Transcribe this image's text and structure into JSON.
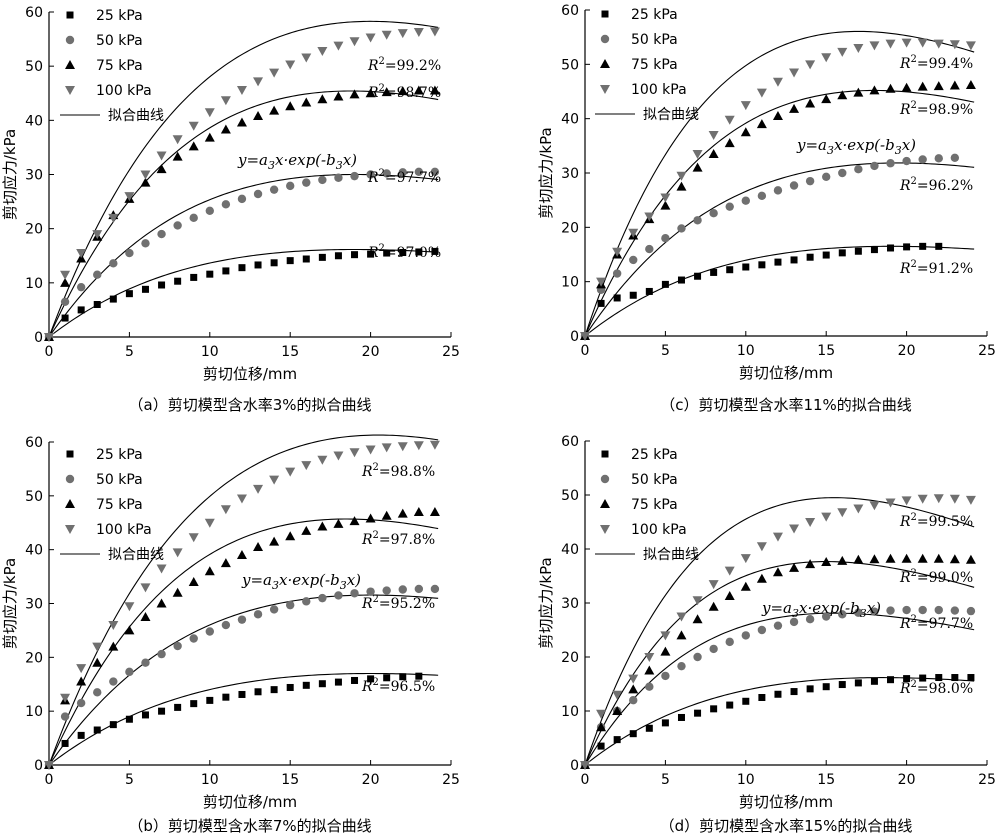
{
  "legend_labels": [
    "25 kPa",
    "50 kPa",
    "75 kPa",
    "100 kPa",
    "拟合曲线"
  ],
  "equation": {
    "lead": "y=a",
    "sub1": "3",
    "mid": "x·exp(-b",
    "sub2": "3",
    "tail": "x)"
  },
  "chart_data": [
    {
      "type": "scatter",
      "caption": "（a）剪切模型含水率3%的拟合曲线",
      "xlabel": "剪切位移/mm",
      "ylabel": "剪切应力/kPa",
      "xlim": [
        0,
        25
      ],
      "ylim": [
        0,
        60
      ],
      "xticks": [
        0,
        5,
        10,
        15,
        20,
        25
      ],
      "yticks": [
        0,
        10,
        20,
        30,
        40,
        50,
        60
      ],
      "x": [
        0,
        1,
        2,
        3,
        4,
        5,
        6,
        7,
        8,
        9,
        10,
        11,
        12,
        13,
        14,
        15,
        16,
        17,
        18,
        19,
        20,
        21,
        22,
        23,
        24
      ],
      "series": [
        {
          "name": "25 kPa",
          "marker": "square",
          "values": [
            0,
            3.5,
            5,
            6,
            7,
            8,
            8.8,
            9.6,
            10.3,
            11,
            11.6,
            12.2,
            12.8,
            13.3,
            13.7,
            14.1,
            14.4,
            14.7,
            15,
            15.2,
            15.3,
            15.5,
            15.6,
            15.7,
            15.8
          ],
          "fit": {
            "a": 2.31,
            "b": 0.0526
          },
          "r2": "97.0%"
        },
        {
          "name": "50 kPa",
          "marker": "circle",
          "values": [
            0,
            6.5,
            9.2,
            11.5,
            13.6,
            15.5,
            17.3,
            19,
            20.6,
            22,
            23.3,
            24.5,
            25.5,
            26.4,
            27.2,
            27.9,
            28.5,
            29,
            29.4,
            29.7,
            30,
            30.2,
            30.4,
            30.5,
            30.5
          ],
          "fit": {
            "a": 4.29,
            "b": 0.0526
          },
          "r2": "97.7%"
        },
        {
          "name": "75 kPa",
          "marker": "triangle-up",
          "values": [
            0,
            10,
            14.5,
            18.5,
            22.5,
            25.5,
            28.5,
            31,
            33.3,
            35.2,
            36.8,
            38.3,
            39.6,
            40.8,
            41.8,
            42.6,
            43.3,
            43.9,
            44.4,
            44.8,
            45,
            45.2,
            45.4,
            45.5,
            45.5
          ],
          "fit": {
            "a": 6.58,
            "b": 0.0533
          },
          "r2": "98.7%"
        },
        {
          "name": "100 kPa",
          "marker": "triangle-down",
          "values": [
            0,
            11.5,
            15.5,
            19,
            22,
            26,
            30,
            33.5,
            36.5,
            39,
            41.5,
            43.7,
            45.6,
            47.2,
            48.8,
            50.3,
            51.6,
            52.8,
            53.8,
            54.6,
            55.3,
            55.8,
            56.1,
            56.3,
            56.4
          ],
          "fit": {
            "a": 7.92,
            "b": 0.05
          },
          "r2": "99.2%"
        }
      ]
    },
    {
      "type": "scatter",
      "caption": "（b）剪切模型含水率7%的拟合曲线",
      "xlabel": "剪切位移/mm",
      "ylabel": "剪切应力/kPa",
      "xlim": [
        0,
        25
      ],
      "ylim": [
        0,
        60
      ],
      "xticks": [
        0,
        5,
        10,
        15,
        20,
        25
      ],
      "yticks": [
        0,
        10,
        20,
        30,
        40,
        50,
        60
      ],
      "x": [
        0,
        1,
        2,
        3,
        4,
        5,
        6,
        7,
        8,
        9,
        10,
        11,
        12,
        13,
        14,
        15,
        16,
        17,
        18,
        19,
        20,
        21,
        22,
        23,
        24
      ],
      "series": [
        {
          "name": "25 kPa",
          "marker": "square",
          "values": [
            0,
            4,
            5.5,
            6.5,
            7.5,
            8.5,
            9.3,
            10,
            10.7,
            11.4,
            12,
            12.6,
            13.1,
            13.6,
            14,
            14.4,
            14.8,
            15.1,
            15.4,
            15.7,
            16,
            16.2,
            16.4,
            16.5,
            null
          ],
          "fit": {
            "a": 2.31,
            "b": 0.05
          },
          "r2": "96.5%"
        },
        {
          "name": "50 kPa",
          "marker": "circle",
          "values": [
            0,
            9,
            11.5,
            13.5,
            15.5,
            17.3,
            19,
            20.6,
            22.1,
            23.5,
            24.8,
            26,
            27,
            28,
            28.9,
            29.7,
            30.4,
            31,
            31.5,
            31.9,
            32.2,
            32.4,
            32.6,
            32.7,
            32.7
          ],
          "fit": {
            "a": 4.29,
            "b": 0.05
          },
          "r2": "95.2%"
        },
        {
          "name": "75 kPa",
          "marker": "triangle-up",
          "values": [
            0,
            12,
            15.5,
            19,
            22,
            25,
            27.5,
            30,
            32,
            34,
            36,
            37.5,
            39,
            40.5,
            41.5,
            42.5,
            43.5,
            44.3,
            44.8,
            45.3,
            45.8,
            46.3,
            46.7,
            47,
            47
          ],
          "fit": {
            "a": 6.72,
            "b": 0.0541
          },
          "r2": "97.8%"
        },
        {
          "name": "100 kPa",
          "marker": "triangle-down",
          "values": [
            0,
            12.5,
            18,
            22,
            26,
            29.5,
            33,
            36.5,
            39.5,
            42.3,
            45,
            47.5,
            49.5,
            51.3,
            53,
            54.5,
            55.7,
            56.7,
            57.5,
            58.1,
            58.6,
            59,
            59.2,
            59.4,
            59.5
          ],
          "fit": {
            "a": 8.13,
            "b": 0.0488
          },
          "r2": "98.8%"
        }
      ]
    },
    {
      "type": "scatter",
      "caption": "（c）剪切模型含水率11%的拟合曲线",
      "xlabel": "剪切位移/mm",
      "ylabel": "剪切应力/kPa",
      "xlim": [
        0,
        25
      ],
      "ylim": [
        0,
        60
      ],
      "xticks": [
        0,
        5,
        10,
        15,
        20,
        25
      ],
      "yticks": [
        0,
        10,
        20,
        30,
        40,
        50,
        60
      ],
      "x": [
        0,
        1,
        2,
        3,
        4,
        5,
        6,
        7,
        8,
        9,
        10,
        11,
        12,
        13,
        14,
        15,
        16,
        17,
        18,
        19,
        20,
        21,
        22,
        23,
        24
      ],
      "series": [
        {
          "name": "25 kPa",
          "marker": "square",
          "values": [
            0,
            6,
            7,
            7.5,
            8.2,
            9.5,
            10.3,
            11,
            11.7,
            12.2,
            12.7,
            13.1,
            13.6,
            14,
            14.5,
            14.9,
            15.3,
            15.6,
            15.9,
            16.2,
            16.4,
            16.5,
            16.5,
            null,
            null
          ],
          "fit": {
            "a": 2.36,
            "b": 0.0526
          },
          "r2": "91.2%"
        },
        {
          "name": "50 kPa",
          "marker": "circle",
          "values": [
            0,
            8.5,
            11.5,
            14,
            16,
            18,
            19.8,
            21.3,
            22.6,
            23.8,
            24.9,
            25.8,
            26.8,
            27.7,
            28.5,
            29.3,
            30,
            30.7,
            31.3,
            31.8,
            32.2,
            32.5,
            32.7,
            32.8,
            null
          ],
          "fit": {
            "a": 4.45,
            "b": 0.0514
          },
          "r2": "96.2%"
        },
        {
          "name": "75 kPa",
          "marker": "triangle-up",
          "values": [
            0,
            9.5,
            15,
            18.5,
            21.5,
            24,
            27.5,
            31,
            33.5,
            35.5,
            37.5,
            39,
            40.5,
            41.8,
            42.8,
            43.6,
            44.3,
            44.8,
            45.2,
            45.5,
            45.7,
            45.9,
            46,
            46.1,
            46.2
          ],
          "fit": {
            "a": 6.83,
            "b": 0.0556
          },
          "r2": "98.9%"
        },
        {
          "name": "100 kPa",
          "marker": "triangle-down",
          "values": [
            0,
            10,
            15.5,
            19,
            22,
            25.5,
            29.5,
            33.5,
            37,
            39.8,
            42.5,
            44.8,
            46.8,
            48.5,
            50,
            51.3,
            52.3,
            53,
            53.5,
            53.8,
            54,
            54,
            53.8,
            53.7,
            53.5
          ],
          "fit": {
            "a": 8.96,
            "b": 0.0588
          },
          "r2": "99.4%"
        }
      ]
    },
    {
      "type": "scatter",
      "caption": "（d）剪切模型含水率15%的拟合曲线",
      "xlabel": "剪切位移/mm",
      "ylabel": "剪切应力/kPa",
      "xlim": [
        0,
        25
      ],
      "ylim": [
        0,
        60
      ],
      "xticks": [
        0,
        5,
        10,
        15,
        20,
        25
      ],
      "yticks": [
        0,
        10,
        20,
        30,
        40,
        50,
        60
      ],
      "x": [
        0,
        1,
        2,
        3,
        4,
        5,
        6,
        7,
        8,
        9,
        10,
        11,
        12,
        13,
        14,
        15,
        16,
        17,
        18,
        19,
        20,
        21,
        22,
        23,
        24
      ],
      "series": [
        {
          "name": "25 kPa",
          "marker": "square",
          "values": [
            0,
            3.5,
            4.7,
            5.8,
            6.8,
            7.8,
            8.8,
            9.6,
            10.4,
            11.1,
            11.8,
            12.5,
            13.1,
            13.6,
            14.1,
            14.5,
            14.9,
            15.2,
            15.5,
            15.8,
            16,
            16.1,
            16.2,
            16.2,
            16.2
          ],
          "fit": {
            "a": 2.38,
            "b": 0.0541
          },
          "r2": "98.0%"
        },
        {
          "name": "50 kPa",
          "marker": "circle",
          "values": [
            0,
            7,
            10,
            12,
            14.5,
            16.5,
            18.3,
            20,
            21.5,
            22.8,
            24,
            25,
            25.8,
            26.5,
            27,
            27.5,
            27.9,
            28.2,
            28.4,
            28.6,
            28.7,
            28.7,
            28.7,
            28.6,
            28.5
          ],
          "fit": {
            "a": 4.93,
            "b": 0.0645
          },
          "r2": "97.7%"
        },
        {
          "name": "75 kPa",
          "marker": "triangle-up",
          "values": [
            0,
            7,
            10,
            14,
            17.5,
            21,
            24,
            27,
            29.3,
            31.3,
            33,
            34.5,
            35.7,
            36.5,
            37.2,
            37.6,
            37.8,
            38,
            38.1,
            38.2,
            38.2,
            38.2,
            38.2,
            38.1,
            38
          ],
          "fit": {
            "a": 6.83,
            "b": 0.0667
          },
          "r2": "99.0%"
        },
        {
          "name": "100 kPa",
          "marker": "triangle-down",
          "values": [
            0,
            9.5,
            13,
            16,
            20,
            24,
            27.5,
            30.5,
            33.5,
            36,
            38.3,
            40.5,
            42.3,
            43.8,
            45,
            46,
            46.8,
            47.5,
            48.1,
            48.6,
            49,
            49.3,
            49.4,
            49.3,
            49.1
          ],
          "fit": {
            "a": 8.68,
            "b": 0.0645
          },
          "r2": "99.5%"
        }
      ]
    }
  ]
}
